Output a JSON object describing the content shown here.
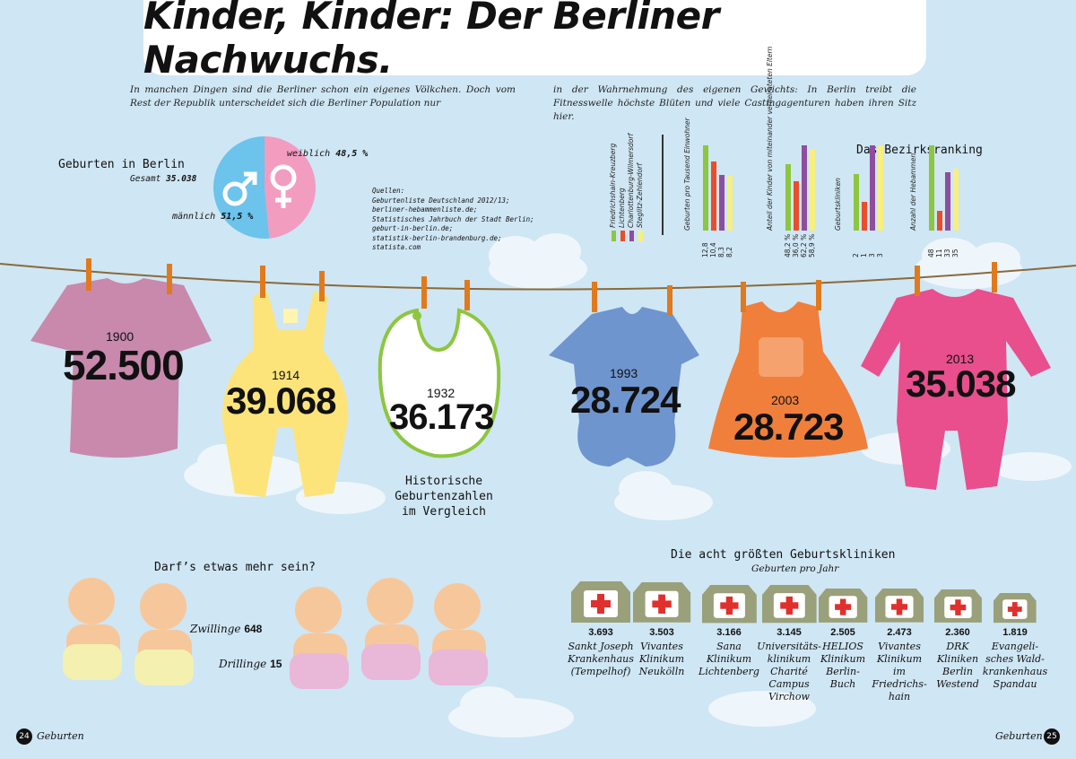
{
  "title": "Kinder, Kinder: Der Berliner Nachwuchs.",
  "intro": {
    "left": "In manchen Dingen sind die Berliner schon ein eigenes Völkchen. Doch vom Rest der Republik unterscheidet sich die Berliner Population nur",
    "right": "in der Wahrnehmung des eigenen Gewichts: In Berlin treibt die Fitnesswelle höchste Blüten und viele Castingagenturen haben ihren Sitz hier."
  },
  "births": {
    "title": "Geburten in Berlin",
    "total_label": "Gesamt",
    "total": "35.038",
    "female_label": "weiblich",
    "female_pct": "48,5 %",
    "female_value": 48.5,
    "male_label": "männlich",
    "male_pct": "51,5 %",
    "male_value": 51.5,
    "female_color": "#f29cc0",
    "male_color": "#6cc3ec"
  },
  "sources": {
    "label": "Quellen:",
    "lines": [
      "Geburtenliste Deutschland 2012/13;",
      "berliner-hebammenliste.de;",
      "Statistisches Jahrbuch der Stadt Berlin;",
      "geburt-in-berlin.de;",
      "statistik-berlin-brandenburg.de;",
      "statista.com"
    ]
  },
  "ranking": {
    "title": "Das Bezirksranking",
    "districts": [
      {
        "name": "Friedrichshain-Kreuzberg",
        "color": "#8dc63f"
      },
      {
        "name": "Lichtenberg",
        "color": "#e94e2c"
      },
      {
        "name": "Charlottenburg-Wilmersdorf",
        "color": "#8e4e9f"
      },
      {
        "name": "Steglitz-Zehlendorf",
        "color": "#f7ef7e"
      }
    ],
    "groups": [
      {
        "label": "Geburten pro Tausend Einwohner",
        "values": [
          12.8,
          10.4,
          8.3,
          8.2
        ],
        "labels": [
          "12,8",
          "10,4",
          "8,3",
          "8,2"
        ],
        "max": 12.8
      },
      {
        "label": "Anteil der Kinder von miteinander verheirateten Eltern",
        "values": [
          48.2,
          36.0,
          62.2,
          58.9
        ],
        "labels": [
          "48,2 %",
          "36,0 %",
          "62,2 %",
          "58,9 %"
        ],
        "max": 62.2
      },
      {
        "label": "Geburtskliniken",
        "values": [
          2,
          1,
          3,
          3
        ],
        "labels": [
          "2",
          "1",
          "3",
          "3"
        ],
        "max": 3
      },
      {
        "label": "Anzahl der Hebammen",
        "values": [
          48,
          11,
          33,
          35
        ],
        "labels": [
          "48",
          "11",
          "33",
          "35"
        ],
        "max": 48
      }
    ]
  },
  "historic": {
    "caption": [
      "Historische",
      "Geburtenzahlen",
      "im Vergleich"
    ],
    "items": [
      {
        "year": "1900",
        "value": "52.500",
        "color": "#c889ad"
      },
      {
        "year": "1914",
        "value": "39.068",
        "color": "#fce47b"
      },
      {
        "year": "1932",
        "value": "36.173",
        "color": "#ffffff"
      },
      {
        "year": "1993",
        "value": "28.724",
        "color": "#6f95cf"
      },
      {
        "year": "2003",
        "value": "28.723",
        "color": "#f07f3c"
      },
      {
        "year": "2013",
        "value": "35.038",
        "color": "#e84f8c"
      }
    ]
  },
  "multiples": {
    "title": "Darf’s etwas mehr sein?",
    "twins_label": "Zwillinge",
    "twins": "648",
    "triplets_label": "Drillinge",
    "triplets": "15"
  },
  "clinics": {
    "title": "Die acht größten Geburtskliniken",
    "subtitle": "Geburten pro Jahr",
    "items": [
      {
        "value": "3.693",
        "number": 3693,
        "name": [
          "Sankt Joseph",
          "Krankenhaus",
          "(Tempelhof)"
        ]
      },
      {
        "value": "3.503",
        "number": 3503,
        "name": [
          "Vivantes",
          "Klinikum",
          "Neukölln"
        ]
      },
      {
        "value": "3.166",
        "number": 3166,
        "name": [
          "Sana",
          "Klinikum",
          "Lichtenberg"
        ]
      },
      {
        "value": "3.145",
        "number": 3145,
        "name": [
          "Universitäts-",
          "klinikum",
          "Charité",
          "Campus",
          "Virchow"
        ]
      },
      {
        "value": "2.505",
        "number": 2505,
        "name": [
          "HELIOS",
          "Klinikum",
          "Berlin-",
          "Buch"
        ]
      },
      {
        "value": "2.473",
        "number": 2473,
        "name": [
          "Vivantes",
          "Klinikum",
          "im",
          "Friedrichs-",
          "hain"
        ]
      },
      {
        "value": "2.360",
        "number": 2360,
        "name": [
          "DRK",
          "Kliniken",
          "Berlin",
          "Westend"
        ]
      },
      {
        "value": "1.819",
        "number": 1819,
        "name": [
          "Evangeli-",
          "sches Wald-",
          "krankenhaus",
          "Spandau"
        ]
      }
    ]
  },
  "footer": {
    "left_num": "24",
    "left_label": "Geburten",
    "right_label": "Geburten",
    "right_num": "25"
  }
}
